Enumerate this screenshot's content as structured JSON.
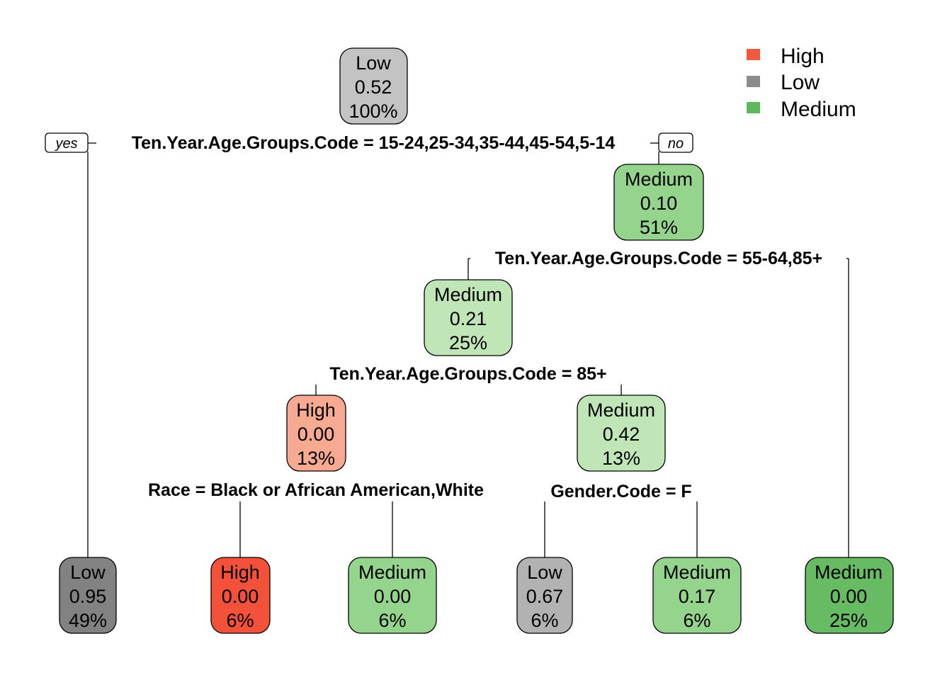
{
  "legend": {
    "items": [
      {
        "label": "High",
        "color": "#f15a3e"
      },
      {
        "label": "Low",
        "color": "#8c8c8c"
      },
      {
        "label": "Medium",
        "color": "#5cb85c"
      }
    ]
  },
  "branch_labels": {
    "yes": "yes",
    "no": "no"
  },
  "splits": {
    "root": "Ten.Year.Age.Groups.Code = 15-24,25-34,35-44,45-54,5-14",
    "n3": "Ten.Year.Age.Groups.Code = 55-64,85+",
    "n6": "Ten.Year.Age.Groups.Code = 85+",
    "n12": "Race = Black or African American,White",
    "n13": "Gender.Code = F"
  },
  "nodes": {
    "root": {
      "class": "Low",
      "prob": "0.52",
      "pct": "100%",
      "fill": "#c3c3c3"
    },
    "n3": {
      "class": "Medium",
      "prob": "0.10",
      "pct": "51%",
      "fill": "#95d48c"
    },
    "n6": {
      "class": "Medium",
      "prob": "0.21",
      "pct": "25%",
      "fill": "#c0e6b7"
    },
    "n12": {
      "class": "High",
      "prob": "0.00",
      "pct": "13%",
      "fill": "#f6aa91"
    },
    "n13": {
      "class": "Medium",
      "prob": "0.42",
      "pct": "13%",
      "fill": "#c0e6b7"
    },
    "leaf2": {
      "class": "Low",
      "prob": "0.95",
      "pct": "49%",
      "fill": "#828282"
    },
    "leaf24": {
      "class": "High",
      "prob": "0.00",
      "pct": "6%",
      "fill": "#f3513a"
    },
    "leaf25": {
      "class": "Medium",
      "prob": "0.00",
      "pct": "6%",
      "fill": "#95d48c"
    },
    "leaf26": {
      "class": "Low",
      "prob": "0.67",
      "pct": "6%",
      "fill": "#b2b2b2"
    },
    "leaf27": {
      "class": "Medium",
      "prob": "0.17",
      "pct": "6%",
      "fill": "#95d48c"
    },
    "leaf7": {
      "class": "Medium",
      "prob": "0.00",
      "pct": "25%",
      "fill": "#66bb63"
    }
  }
}
